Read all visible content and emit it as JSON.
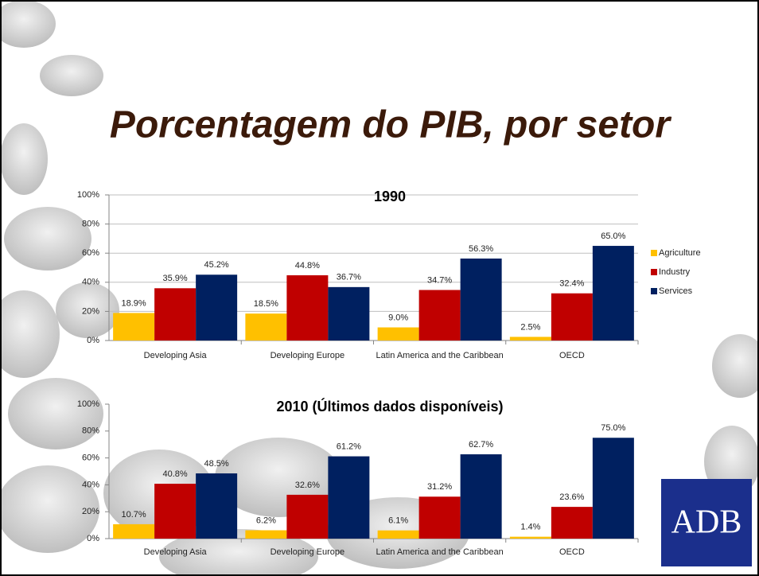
{
  "slide_title": "Porcentagem do PIB, por setor",
  "logo": "ADB",
  "chart_data": [
    {
      "type": "bar",
      "title": "1990",
      "categories": [
        "Developing Asia",
        "Developing Europe",
        "Latin America and the Caribbean",
        "OECD"
      ],
      "series": [
        {
          "name": "Agriculture",
          "color": "#ffc000",
          "values": [
            18.9,
            18.5,
            9.0,
            2.5
          ],
          "value_labels": [
            "18.9%",
            "18.5%",
            "9.0%",
            "2.5%"
          ]
        },
        {
          "name": "Industry",
          "color": "#c00000",
          "values": [
            35.9,
            44.8,
            34.7,
            32.4
          ],
          "value_labels": [
            "35.9%",
            "44.8%",
            "34.7%",
            "32.4%"
          ]
        },
        {
          "name": "Services",
          "color": "#002060",
          "values": [
            45.2,
            36.7,
            56.3,
            65.0
          ],
          "value_labels": [
            "45.2%",
            "36.7%",
            "56.3%",
            "65.0%"
          ]
        }
      ],
      "ylim": [
        0,
        100
      ],
      "yticks": [
        {
          "value": 0,
          "label": "0%"
        },
        {
          "value": 20,
          "label": "20%"
        },
        {
          "value": 40,
          "label": "40%"
        },
        {
          "value": 60,
          "label": "60%"
        },
        {
          "value": 80,
          "label": "80%"
        },
        {
          "value": 100,
          "label": "100%"
        }
      ],
      "grid": true,
      "legend": "right"
    },
    {
      "type": "bar",
      "title": "2010 (Últimos dados disponíveis)",
      "categories": [
        "Developing Asia",
        "Developing Europe",
        "Latin America and the Caribbean",
        "OECD"
      ],
      "series": [
        {
          "color": "#ffc000",
          "values": [
            10.7,
            6.2,
            6.1,
            1.4
          ],
          "value_labels": [
            "10.7%",
            "6.2%",
            "6.1%",
            "1.4%"
          ]
        },
        {
          "color": "#c00000",
          "values": [
            40.8,
            32.6,
            31.2,
            23.6
          ],
          "value_labels": [
            "40.8%",
            "32.6%",
            "31.2%",
            "23.6%"
          ]
        },
        {
          "color": "#002060",
          "values": [
            48.5,
            61.2,
            62.7,
            75.0
          ],
          "value_labels": [
            "48.5%",
            "61.2%",
            "62.7%",
            "75.0%"
          ]
        }
      ],
      "ylim": [
        0,
        100
      ],
      "yticks": [
        {
          "value": 0,
          "label": "0%"
        },
        {
          "value": 20,
          "label": "20%"
        },
        {
          "value": 40,
          "label": "40%"
        },
        {
          "value": 60,
          "label": "60%"
        },
        {
          "value": 80,
          "label": "80%"
        },
        {
          "value": 100,
          "label": "100%"
        }
      ],
      "grid": false
    }
  ]
}
